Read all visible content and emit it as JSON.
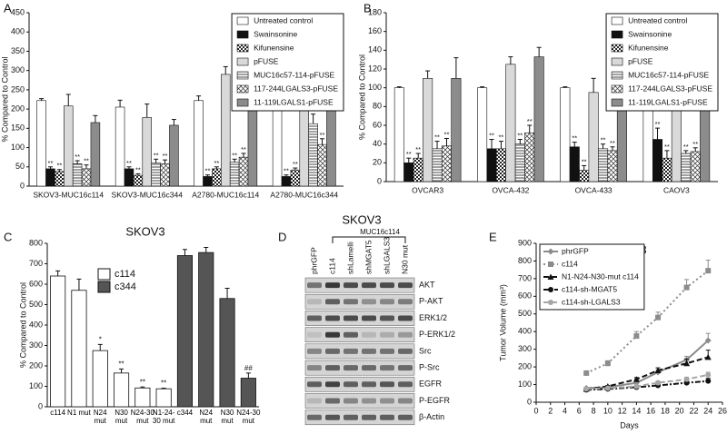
{
  "chart_data": [
    {
      "type": "grouped_bar",
      "panel": "A",
      "ylabel": "% Compared to Control",
      "categories": [
        "SKOV3-MUC16c114",
        "SKOV3-MUC16c344",
        "A2780-MUC16c114",
        "A2780-MUC16c344"
      ],
      "ylim": [
        0,
        450
      ],
      "yticks": [
        0,
        50,
        100,
        150,
        200,
        250,
        300,
        350,
        400,
        450
      ],
      "legend": "top-right",
      "series": [
        {
          "name": "Untreated control",
          "color": "#ffffff",
          "values": [
            222,
            205,
            222,
            285
          ],
          "errors": [
            5,
            18,
            12,
            20
          ],
          "sig": [
            null,
            null,
            null,
            null
          ]
        },
        {
          "name": "Swainsonine",
          "color": "#111111",
          "values": [
            45,
            45,
            25,
            25
          ],
          "errors": [
            5,
            5,
            4,
            4
          ],
          "sig": [
            "**",
            "**",
            "**",
            "**"
          ]
        },
        {
          "name": "Kifunensine",
          "color": "#ffffff",
          "pattern": "checker",
          "values": [
            38,
            28,
            45,
            42
          ],
          "errors": [
            5,
            4,
            5,
            5
          ],
          "sig": [
            "**",
            "**",
            "**",
            "**"
          ]
        },
        {
          "name": "pFUSE",
          "color": "#d9d9d9",
          "values": [
            208,
            178,
            290,
            380
          ],
          "errors": [
            30,
            35,
            20,
            30
          ],
          "sig": [
            null,
            null,
            null,
            null
          ]
        },
        {
          "name": "MUC16c57-114-pFUSE",
          "color": "#ffffff",
          "pattern": "hlines",
          "values": [
            58,
            60,
            62,
            162
          ],
          "errors": [
            8,
            10,
            8,
            25
          ],
          "sig": [
            "**",
            "**",
            "**",
            "*"
          ]
        },
        {
          "name": "117-244LGALS3-pFUSE",
          "color": "#ffffff",
          "pattern": "cross",
          "values": [
            45,
            58,
            75,
            108
          ],
          "errors": [
            10,
            10,
            10,
            15
          ],
          "sig": [
            "**",
            "**",
            "**",
            "**"
          ]
        },
        {
          "name": "11-119LGALS1-pFUSE",
          "color": "#8c8c8c",
          "values": [
            165,
            158,
            275,
            302
          ],
          "errors": [
            18,
            15,
            25,
            30
          ],
          "sig": [
            null,
            null,
            null,
            null
          ]
        }
      ]
    },
    {
      "type": "grouped_bar",
      "panel": "B",
      "ylabel": "% Compared to Control",
      "categories": [
        "OVCAR3",
        "OVCA-432",
        "OVCA-433",
        "CAOV3"
      ],
      "ylim": [
        0,
        180
      ],
      "yticks": [
        0,
        20,
        40,
        60,
        80,
        100,
        120,
        140,
        160,
        180
      ],
      "legend": "top-right",
      "series": [
        {
          "name": "Untreated control",
          "color": "#ffffff",
          "values": [
            100,
            100,
            100,
            100
          ],
          "errors": [
            1,
            1,
            1,
            1
          ],
          "sig": [
            null,
            null,
            null,
            null
          ]
        },
        {
          "name": "Swainsonine",
          "color": "#111111",
          "values": [
            20,
            35,
            37,
            45
          ],
          "errors": [
            5,
            10,
            5,
            12
          ],
          "sig": [
            "**",
            "**",
            "**",
            "**"
          ]
        },
        {
          "name": "Kifunensine",
          "color": "#ffffff",
          "pattern": "checker",
          "values": [
            25,
            35,
            12,
            25
          ],
          "errors": [
            5,
            8,
            5,
            8
          ],
          "sig": [
            "**",
            "**",
            "**",
            "**"
          ]
        },
        {
          "name": "pFUSE",
          "color": "#d9d9d9",
          "values": [
            110,
            125,
            95,
            97
          ],
          "errors": [
            8,
            8,
            15,
            22
          ],
          "sig": [
            null,
            null,
            null,
            null
          ]
        },
        {
          "name": "MUC16c57-114-pFUSE",
          "color": "#ffffff",
          "pattern": "hlines",
          "values": [
            35,
            40,
            35,
            30
          ],
          "errors": [
            8,
            5,
            5,
            3
          ],
          "sig": [
            "**",
            "**",
            "**",
            "**"
          ]
        },
        {
          "name": "117-244LGALS3-pFUSE",
          "color": "#ffffff",
          "pattern": "cross",
          "values": [
            38,
            52,
            33,
            32
          ],
          "errors": [
            8,
            8,
            4,
            4
          ],
          "sig": [
            "**",
            "**",
            "**",
            "**"
          ]
        },
        {
          "name": "11-119LGALS1-pFUSE",
          "color": "#8c8c8c",
          "values": [
            110,
            133,
            105,
            148
          ],
          "errors": [
            22,
            10,
            8,
            15
          ],
          "sig": [
            null,
            null,
            null,
            null
          ]
        }
      ]
    },
    {
      "type": "bar",
      "panel": "C",
      "title": "SKOV3",
      "ylabel": "% Compared to Control",
      "categories": [
        "c114",
        "N1 mut",
        "N24 mut",
        "N30 mut",
        "N24-30 mut",
        "N1-24-30 mut",
        "c344",
        "N24 mut",
        "N30 mut",
        "N24-30 mut"
      ],
      "ylim": [
        0,
        800
      ],
      "yticks": [
        0,
        100,
        200,
        300,
        400,
        500,
        600,
        700,
        800
      ],
      "legend": "top-left",
      "series": [
        {
          "name": "c114",
          "color": "#ffffff",
          "values": [
            640,
            570,
            275,
            165,
            92,
            88,
            null,
            null,
            null,
            null
          ],
          "errors": [
            25,
            55,
            30,
            20,
            5,
            3,
            null,
            null,
            null,
            null
          ],
          "sig": [
            null,
            null,
            "*",
            "**",
            "**",
            "**",
            null,
            null,
            null,
            null
          ]
        },
        {
          "name": "c344",
          "color": "#555555",
          "values": [
            null,
            null,
            null,
            null,
            null,
            null,
            740,
            755,
            530,
            140
          ],
          "errors": [
            null,
            null,
            null,
            null,
            null,
            null,
            30,
            25,
            50,
            25
          ],
          "sig": [
            null,
            null,
            null,
            null,
            null,
            null,
            null,
            null,
            null,
            "##"
          ]
        }
      ]
    },
    {
      "type": "line",
      "panel": "E",
      "title": "SKOV3",
      "xlabel": "Days",
      "ylabel": "Tumor Volume (mm³)",
      "x": [
        7,
        10,
        14,
        17,
        21,
        24
      ],
      "xlim": [
        0,
        26
      ],
      "xticks": [
        0,
        2,
        4,
        6,
        8,
        10,
        12,
        14,
        16,
        18,
        20,
        22,
        24,
        26
      ],
      "ylim": [
        0,
        900
      ],
      "yticks": [
        0,
        100,
        200,
        300,
        400,
        500,
        600,
        700,
        800,
        900
      ],
      "legend": "top-left",
      "series": [
        {
          "name": "phrGFP",
          "color": "#8c8c8c",
          "dash": "solid",
          "marker": "diamond",
          "values": [
            80,
            85,
            110,
            170,
            240,
            350
          ],
          "errors": [
            5,
            5,
            10,
            15,
            20,
            40
          ]
        },
        {
          "name": "c114",
          "color": "#8c8c8c",
          "dash": "dotted",
          "marker": "square",
          "values": [
            165,
            220,
            375,
            480,
            650,
            745
          ],
          "errors": [
            10,
            15,
            25,
            30,
            45,
            60
          ]
        },
        {
          "name": "N1-N24-N30-mut c114",
          "color": "#111111",
          "dash": "dashed",
          "marker": "triangle",
          "values": [
            75,
            90,
            130,
            180,
            220,
            255
          ],
          "errors": [
            5,
            5,
            10,
            15,
            25,
            40
          ]
        },
        {
          "name": "c114-sh-MGAT5",
          "color": "#111111",
          "dash": "dashdot",
          "marker": "circle",
          "values": [
            70,
            75,
            85,
            95,
            110,
            120
          ],
          "errors": [
            5,
            5,
            5,
            8,
            10,
            15
          ]
        },
        {
          "name": "c114-sh-LGALS3",
          "color": "#a6a6a6",
          "dash": "dashed",
          "marker": "circle",
          "values": [
            75,
            80,
            90,
            110,
            130,
            155
          ],
          "errors": [
            5,
            5,
            8,
            10,
            12,
            15
          ]
        }
      ]
    }
  ],
  "blot": {
    "panel": "D",
    "title": "SKOV3",
    "group_label": "MUC16c114",
    "lanes": [
      "phrGFP",
      "c114",
      "shLamelli",
      "shMGAT5",
      "shLGALS3",
      "N30 mut"
    ],
    "rows": [
      "AKT",
      "P-AKT",
      "ERK1/2",
      "P-ERK1/2",
      "Src",
      "P-Src",
      "EGFR",
      "P-EGFR",
      "β-Actin"
    ]
  }
}
